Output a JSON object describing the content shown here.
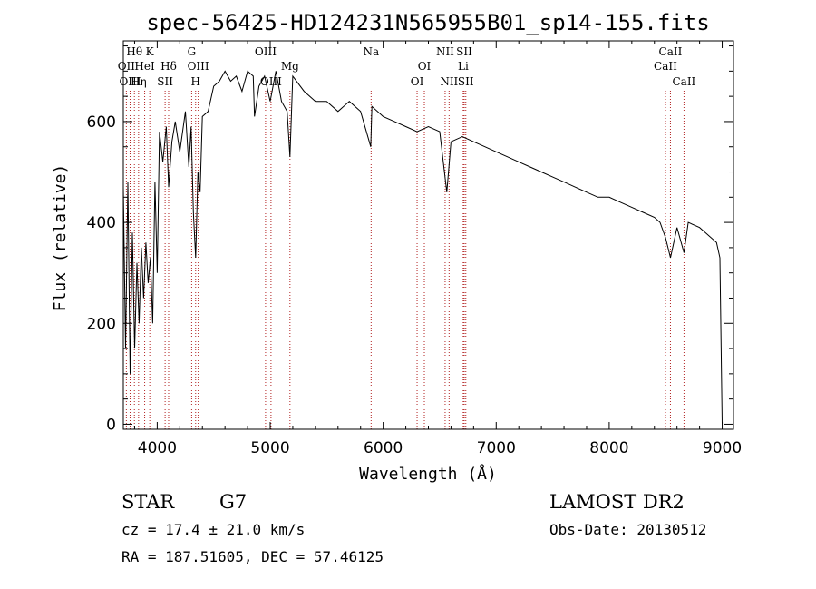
{
  "chart_data": {
    "type": "line",
    "title": "spec-56425-HD124231N565955B01_sp14-155.fits",
    "xlabel": "Wavelength (Å)",
    "ylabel": "Flux (relative)",
    "xlim": [
      3700,
      9100
    ],
    "ylim": [
      -10,
      760
    ],
    "xticks": [
      4000,
      5000,
      6000,
      7000,
      8000,
      9000
    ],
    "xtick_labels": [
      "4000",
      "5000",
      "6000",
      "7000",
      "8000",
      "9000"
    ],
    "yticks": [
      0,
      200,
      400,
      600
    ],
    "ytick_labels": [
      "0",
      "200",
      "400",
      "600"
    ],
    "grid": false,
    "series": [
      {
        "name": "spectrum",
        "x": [
          3700,
          3720,
          3740,
          3760,
          3780,
          3800,
          3820,
          3840,
          3860,
          3880,
          3900,
          3920,
          3940,
          3960,
          3980,
          4000,
          4020,
          4050,
          4080,
          4101,
          4130,
          4160,
          4200,
          4250,
          4280,
          4300,
          4320,
          4340,
          4360,
          4380,
          4400,
          4450,
          4500,
          4550,
          4600,
          4650,
          4700,
          4750,
          4800,
          4850,
          4861,
          4900,
          4950,
          5000,
          5050,
          5100,
          5150,
          5175,
          5200,
          5300,
          5400,
          5500,
          5600,
          5700,
          5800,
          5890,
          5900,
          6000,
          6100,
          6200,
          6300,
          6400,
          6500,
          6563,
          6600,
          6700,
          6800,
          6900,
          7000,
          7100,
          7200,
          7300,
          7400,
          7500,
          7600,
          7700,
          7800,
          7900,
          8000,
          8100,
          8200,
          8300,
          8400,
          8450,
          8498,
          8542,
          8600,
          8662,
          8700,
          8800,
          8900,
          8950,
          8980,
          9000
        ],
        "y": [
          470,
          150,
          480,
          100,
          380,
          150,
          320,
          200,
          350,
          250,
          360,
          280,
          330,
          200,
          480,
          300,
          580,
          520,
          590,
          470,
          560,
          600,
          540,
          620,
          510,
          590,
          420,
          330,
          500,
          460,
          610,
          620,
          670,
          680,
          700,
          680,
          690,
          660,
          700,
          690,
          610,
          670,
          690,
          640,
          700,
          640,
          620,
          530,
          690,
          660,
          640,
          640,
          620,
          640,
          620,
          550,
          630,
          610,
          600,
          590,
          580,
          590,
          580,
          460,
          560,
          570,
          560,
          550,
          540,
          530,
          520,
          510,
          500,
          490,
          480,
          470,
          460,
          450,
          450,
          440,
          430,
          420,
          410,
          400,
          370,
          330,
          390,
          340,
          400,
          390,
          370,
          360,
          330,
          0
        ]
      }
    ],
    "spectral_lines": [
      {
        "name": "Hθ",
        "wavelength": 3798,
        "row": 0
      },
      {
        "name": "OII",
        "wavelength": 3727,
        "row": 1
      },
      {
        "name": "HeI",
        "wavelength": 3889,
        "row": 1
      },
      {
        "name": "OIII",
        "wavelength": 3760,
        "row": 2
      },
      {
        "name": "Hη",
        "wavelength": 3835,
        "row": 2
      },
      {
        "name": "K",
        "wavelength": 3934,
        "row": 0
      },
      {
        "name": "Hδ",
        "wavelength": 4101,
        "row": 1
      },
      {
        "name": "SII",
        "wavelength": 4070,
        "row": 2
      },
      {
        "name": "G",
        "wavelength": 4305,
        "row": 0
      },
      {
        "name": "OIII",
        "wavelength": 4363,
        "row": 1
      },
      {
        "name": "H",
        "wavelength": 4340,
        "row": 2
      },
      {
        "name": "OIII",
        "wavelength": 4959,
        "row": 0
      },
      {
        "name": "OIII",
        "wavelength": 5007,
        "row": 2
      },
      {
        "name": "Mg",
        "wavelength": 5175,
        "row": 1
      },
      {
        "name": "Na",
        "wavelength": 5893,
        "row": 0
      },
      {
        "name": "OI",
        "wavelength": 6364,
        "row": 1
      },
      {
        "name": "OI",
        "wavelength": 6300,
        "row": 2
      },
      {
        "name": "NII",
        "wavelength": 6548,
        "row": 0
      },
      {
        "name": "SII",
        "wavelength": 6717,
        "row": 0
      },
      {
        "name": "Li",
        "wavelength": 6708,
        "row": 1
      },
      {
        "name": "NII",
        "wavelength": 6583,
        "row": 2
      },
      {
        "name": "SII",
        "wavelength": 6731,
        "row": 2
      },
      {
        "name": "CaII",
        "wavelength": 8542,
        "row": 0
      },
      {
        "name": "CaII",
        "wavelength": 8498,
        "row": 1
      },
      {
        "name": "CaII",
        "wavelength": 8662,
        "row": 2
      }
    ]
  },
  "info": {
    "object_class": "STAR",
    "subclass": "G7",
    "survey": "LAMOST DR2",
    "cz": "cz = 17.4 ± 21.0 km/s",
    "obs_date": "Obs-Date: 20130512",
    "coords": "RA = 187.51605, DEC =  57.46125"
  },
  "colors": {
    "spectrum": "#000000",
    "line_markers": "#b22222",
    "axes": "#000000",
    "background": "#ffffff"
  }
}
